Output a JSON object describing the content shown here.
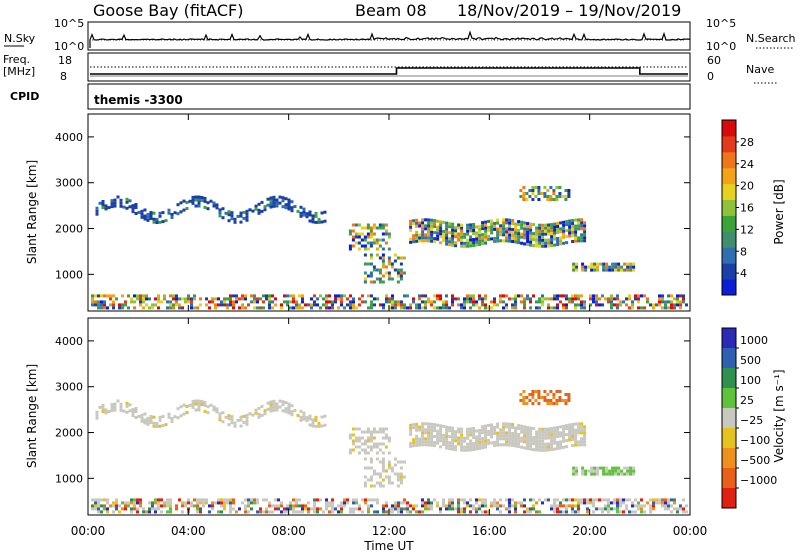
{
  "header": {
    "station": "Goose Bay (fitACF)",
    "beam": "Beam 08",
    "dates": "18/Nov/2019 – 19/Nov/2019"
  },
  "nsky_panel": {
    "label": "N.Sky",
    "left_ticks": [
      "10^5",
      "10^0"
    ],
    "right_ticks": [
      "10^5",
      "10^0"
    ],
    "right_label": "N.Search"
  },
  "freq_panel": {
    "label_line1": "Freq.",
    "label_line2": "[MHz]",
    "left_ticks": [
      "18",
      "8"
    ],
    "right_ticks": [
      "60",
      "0"
    ],
    "right_label": "Nave",
    "freq_levels": [
      {
        "start_h": 0,
        "end_h": 12.3,
        "value": "low"
      },
      {
        "start_h": 12.3,
        "end_h": 22.0,
        "value": "high"
      },
      {
        "start_h": 22.0,
        "end_h": 24,
        "value": "low"
      }
    ]
  },
  "cpid": {
    "label": "CPID",
    "value": "themis -3300"
  },
  "chart_data": [
    {
      "type": "heatmap",
      "name": "power",
      "ylabel": "Slant Range [km]",
      "xlabel": "",
      "x_unit": "hours UT",
      "xlim": [
        0,
        24
      ],
      "ylim": [
        200,
        4500
      ],
      "ytick_values": [
        1000,
        2000,
        3000,
        4000
      ],
      "ytick_labels": [
        "1000",
        "2000",
        "3000",
        "4000"
      ],
      "colorbar_label": "Power [dB]",
      "colorbar_ticks": [
        "4",
        "8",
        "12",
        "16",
        "20",
        "24",
        "28"
      ],
      "colorbar_colors": [
        "#0a1ed8",
        "#1a3fa8",
        "#2f6fb0",
        "#3f8f6f",
        "#3aa33a",
        "#8fc23a",
        "#e6d21e",
        "#f2a316",
        "#f0761c",
        "#e23a1a",
        "#d80a0a"
      ]
    },
    {
      "type": "heatmap",
      "name": "velocity",
      "ylabel": "Slant Range [km]",
      "xlabel": "Time UT",
      "x_unit": "hours UT",
      "xlim": [
        0,
        24
      ],
      "ylim": [
        200,
        4500
      ],
      "ytick_values": [
        1000,
        2000,
        3000,
        4000
      ],
      "ytick_labels": [
        "1000",
        "2000",
        "3000",
        "4000"
      ],
      "xtick_values": [
        0,
        4,
        8,
        12,
        16,
        20,
        24
      ],
      "xtick_labels": [
        "00:00",
        "04:00",
        "08:00",
        "12:00",
        "16:00",
        "20:00",
        "00:00"
      ],
      "colorbar_label": "Velocity [m s⁻¹]",
      "colorbar_ticks": [
        "1000",
        "500",
        "100",
        "25",
        "−25",
        "−100",
        "−500",
        "−1000"
      ],
      "colorbar_colors": [
        "#2a2ab8",
        "#2f5fb0",
        "#2f8f4f",
        "#5ec23a",
        "#c8c8c0",
        "#e6c21e",
        "#f0901c",
        "#e8601a",
        "#e02010"
      ]
    }
  ]
}
